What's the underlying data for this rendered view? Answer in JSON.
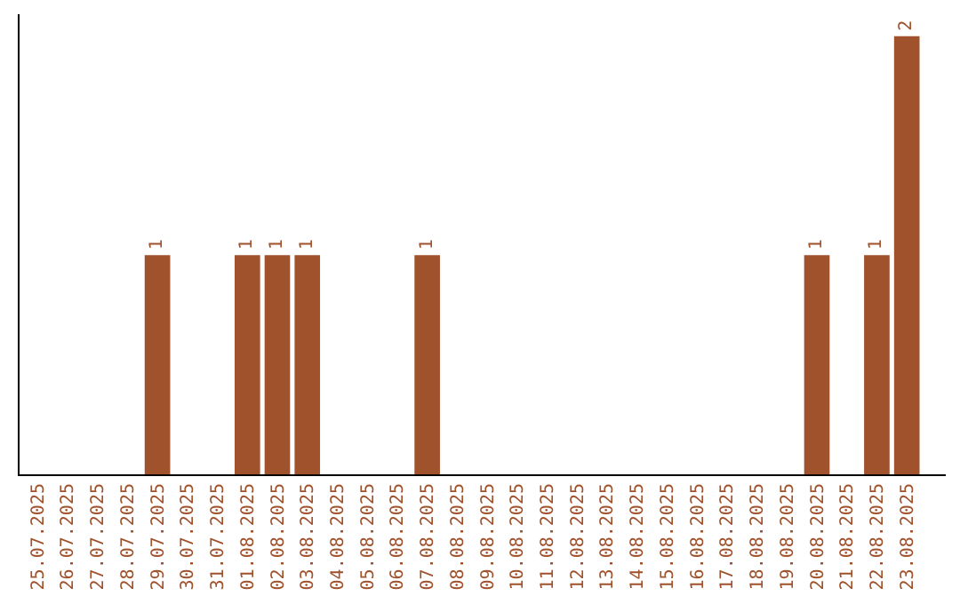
{
  "chart_data": {
    "type": "bar",
    "categories": [
      "25.07.2025",
      "26.07.2025",
      "27.07.2025",
      "28.07.2025",
      "29.07.2025",
      "30.07.2025",
      "31.07.2025",
      "01.08.2025",
      "02.08.2025",
      "03.08.2025",
      "04.08.2025",
      "05.08.2025",
      "06.08.2025",
      "07.08.2025",
      "08.08.2025",
      "09.08.2025",
      "10.08.2025",
      "11.08.2025",
      "12.08.2025",
      "13.08.2025",
      "14.08.2025",
      "15.08.2025",
      "16.08.2025",
      "17.08.2025",
      "18.08.2025",
      "19.08.2025",
      "20.08.2025",
      "21.08.2025",
      "22.08.2025",
      "23.08.2025"
    ],
    "values": [
      0,
      0,
      0,
      0,
      1,
      0,
      0,
      1,
      1,
      1,
      0,
      0,
      0,
      1,
      0,
      0,
      0,
      0,
      0,
      0,
      0,
      0,
      0,
      0,
      0,
      0,
      1,
      0,
      1,
      2
    ],
    "value_labels": [
      null,
      null,
      null,
      null,
      "1",
      null,
      null,
      "1",
      "1",
      "1",
      null,
      null,
      null,
      "1",
      null,
      null,
      null,
      null,
      null,
      null,
      null,
      null,
      null,
      null,
      null,
      null,
      "1",
      null,
      "1",
      "2"
    ],
    "color": "#a0522d"
  }
}
